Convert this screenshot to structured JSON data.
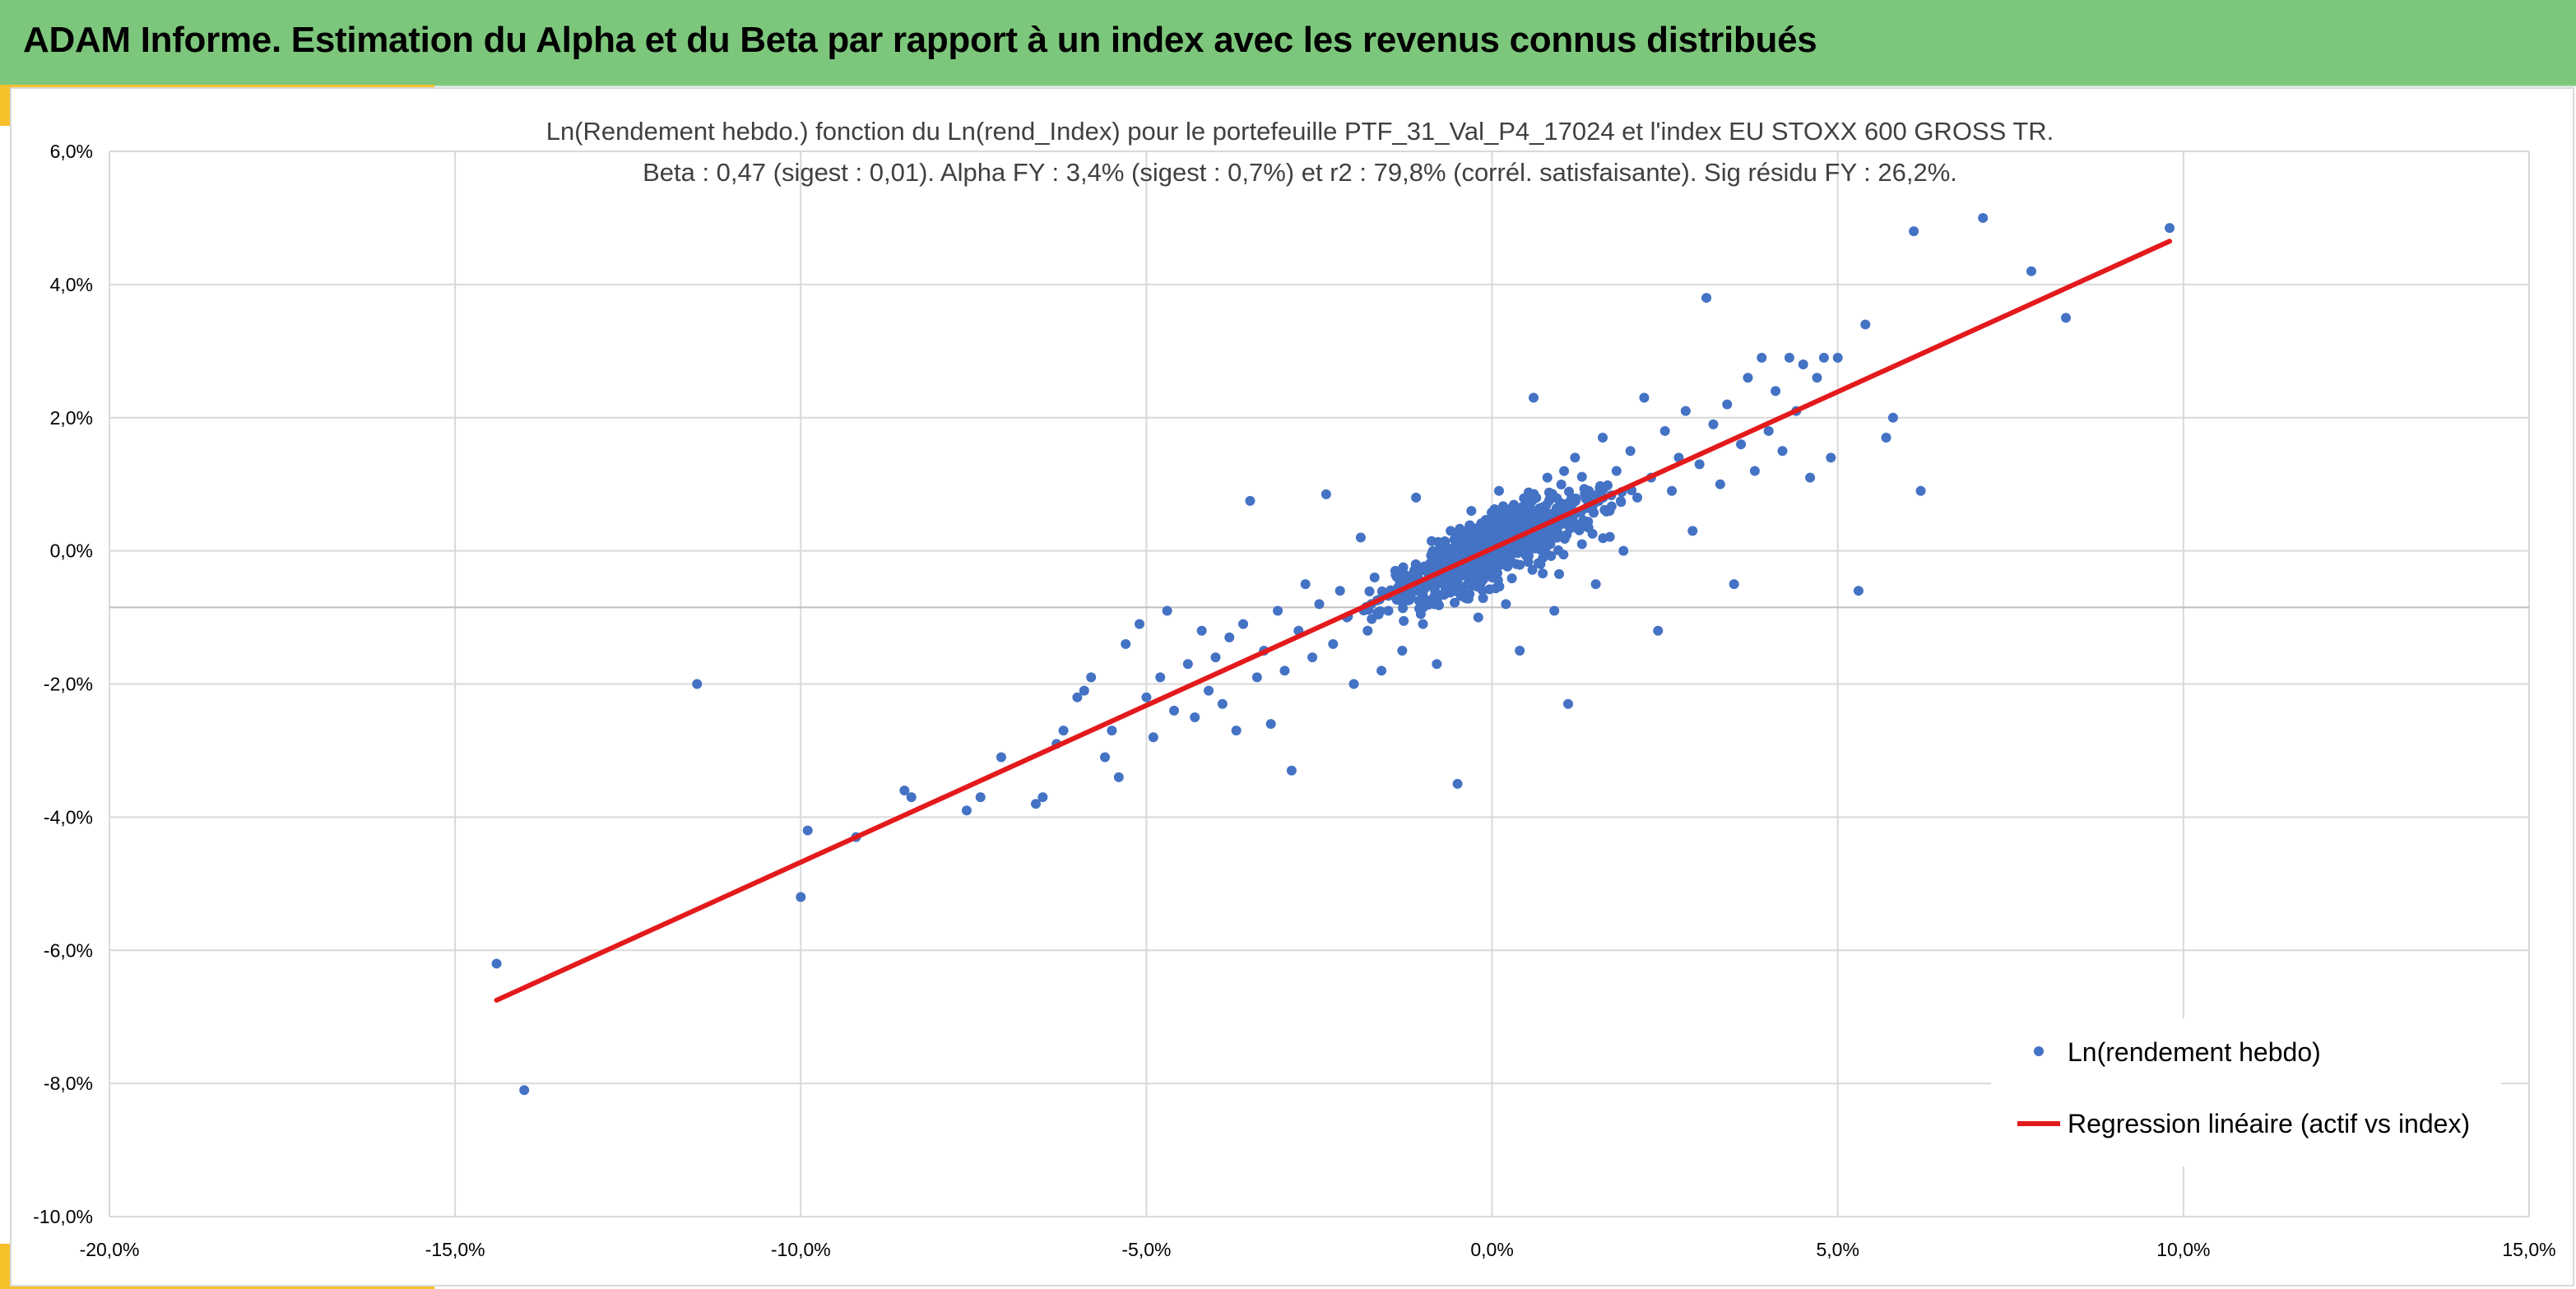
{
  "header": {
    "title": "ADAM Informe. Estimation du Alpha et du Beta par rapport à un index avec les revenus connus distribués"
  },
  "colors": {
    "header_bg": "#7dc77c",
    "accent": "#f6c02b",
    "points": "#4472c4",
    "regression": "#e31a1c",
    "grid": "#d9d9d9"
  },
  "chart_data": {
    "type": "scatter",
    "title_line1": "Ln(Rendement hebdo.) fonction du Ln(rend_Index) pour le portefeuille PTF_31_Val_P4_17024 et l'index EU STOXX 600 GROSS TR.",
    "title_line2": "Beta : 0,47 (sigest : 0,01). Alpha FY : 3,4% (sigest : 0,7%) et r2 : 79,8% (corrél. satisfaisante). Sig résidu FY : 26,2%.",
    "xlim": [
      -20,
      15
    ],
    "ylim": [
      -10,
      6
    ],
    "x_ticks": [
      -20,
      -15,
      -10,
      -5,
      0,
      5,
      10,
      15
    ],
    "y_ticks": [
      -10,
      -8,
      -6,
      -4,
      -2,
      0,
      2,
      4,
      6
    ],
    "x_tick_labels": [
      "-20,0%",
      "-15,0%",
      "-10,0%",
      "-5,0%",
      "0,0%",
      "5,0%",
      "10,0%",
      "15,0%"
    ],
    "y_tick_labels": [
      "-10,0%",
      "-8,0%",
      "-6,0%",
      "-4,0%",
      "-2,0%",
      "0,0%",
      "2,0%",
      "4,0%",
      "6,0%"
    ],
    "horizontal_axis_y": -0.85,
    "grid": true,
    "legend_position": "bottom-right",
    "series": [
      {
        "name": "Ln(rendement hebdo)",
        "kind": "scatter",
        "color": "#4472c4",
        "points": [
          [
            -14.4,
            -6.2
          ],
          [
            -14.0,
            -8.1
          ],
          [
            -11.5,
            -2.0
          ],
          [
            -10.0,
            -5.2
          ],
          [
            -9.9,
            -4.2
          ],
          [
            -9.2,
            -4.3
          ],
          [
            -8.5,
            -3.6
          ],
          [
            -8.4,
            -3.7
          ],
          [
            -7.6,
            -3.9
          ],
          [
            -7.4,
            -3.7
          ],
          [
            -7.1,
            -3.1
          ],
          [
            -6.6,
            -3.8
          ],
          [
            -6.5,
            -3.7
          ],
          [
            -6.3,
            -2.9
          ],
          [
            -6.2,
            -2.7
          ],
          [
            -6.0,
            -2.2
          ],
          [
            -5.9,
            -2.1
          ],
          [
            -5.8,
            -1.9
          ],
          [
            -5.6,
            -3.1
          ],
          [
            -5.5,
            -2.7
          ],
          [
            -5.4,
            -3.4
          ],
          [
            -5.3,
            -1.4
          ],
          [
            -5.1,
            -1.1
          ],
          [
            -5.0,
            -2.2
          ],
          [
            -4.9,
            -2.8
          ],
          [
            -4.8,
            -1.9
          ],
          [
            -4.7,
            -0.9
          ],
          [
            -4.6,
            -2.4
          ],
          [
            -4.4,
            -1.7
          ],
          [
            -4.3,
            -2.5
          ],
          [
            -4.2,
            -1.2
          ],
          [
            -4.1,
            -2.1
          ],
          [
            -4.0,
            -1.6
          ],
          [
            -3.9,
            -2.3
          ],
          [
            -3.8,
            -1.3
          ],
          [
            -3.7,
            -2.7
          ],
          [
            -3.6,
            -1.1
          ],
          [
            -3.5,
            0.75
          ],
          [
            -3.4,
            -1.9
          ],
          [
            -3.3,
            -1.5
          ],
          [
            -3.2,
            -2.6
          ],
          [
            -3.1,
            -0.9
          ],
          [
            -3.0,
            -1.8
          ],
          [
            -2.9,
            -3.3
          ],
          [
            -2.8,
            -1.2
          ],
          [
            -2.7,
            -0.5
          ],
          [
            -2.6,
            -1.6
          ],
          [
            -2.5,
            -0.8
          ],
          [
            -2.4,
            0.85
          ],
          [
            -2.3,
            -1.4
          ],
          [
            -2.2,
            -0.6
          ],
          [
            -2.1,
            -1.0
          ],
          [
            -2.0,
            -2.0
          ],
          [
            -1.9,
            0.2
          ],
          [
            -1.8,
            -1.2
          ],
          [
            -1.7,
            -0.4
          ],
          [
            -1.6,
            -1.8
          ],
          [
            -1.5,
            -0.9
          ],
          [
            -1.4,
            -0.3
          ],
          [
            -1.3,
            -1.5
          ],
          [
            -1.2,
            -0.6
          ],
          [
            -1.1,
            0.8
          ],
          [
            -1.0,
            -1.1
          ],
          [
            -0.9,
            -0.2
          ],
          [
            -0.8,
            -1.7
          ],
          [
            -0.7,
            -0.5
          ],
          [
            -0.6,
            0.3
          ],
          [
            -0.5,
            -3.5
          ],
          [
            -0.4,
            -0.7
          ],
          [
            -0.3,
            0.6
          ],
          [
            -0.2,
            -1.0
          ],
          [
            -0.1,
            -0.1
          ],
          [
            0.0,
            -0.4
          ],
          [
            0.1,
            0.9
          ],
          [
            0.2,
            -0.8
          ],
          [
            0.3,
            0.2
          ],
          [
            0.4,
            -1.5
          ],
          [
            0.5,
            0.5
          ],
          [
            0.6,
            2.3
          ],
          [
            0.7,
            -0.2
          ],
          [
            0.8,
            1.1
          ],
          [
            0.9,
            -0.9
          ],
          [
            1.0,
            0.4
          ],
          [
            1.1,
            -2.3
          ],
          [
            1.2,
            1.4
          ],
          [
            1.3,
            0.1
          ],
          [
            1.4,
            0.9
          ],
          [
            1.5,
            -0.5
          ],
          [
            1.6,
            1.7
          ],
          [
            1.7,
            0.6
          ],
          [
            1.8,
            1.2
          ],
          [
            1.9,
            0.0
          ],
          [
            2.0,
            1.5
          ],
          [
            2.1,
            0.8
          ],
          [
            2.2,
            2.3
          ],
          [
            2.3,
            1.1
          ],
          [
            2.4,
            -1.2
          ],
          [
            2.5,
            1.8
          ],
          [
            2.6,
            0.9
          ],
          [
            2.7,
            1.4
          ],
          [
            2.8,
            2.1
          ],
          [
            2.9,
            0.3
          ],
          [
            3.0,
            1.3
          ],
          [
            3.1,
            3.8
          ],
          [
            3.2,
            1.9
          ],
          [
            3.3,
            1.0
          ],
          [
            3.4,
            2.2
          ],
          [
            3.5,
            -0.5
          ],
          [
            3.6,
            1.6
          ],
          [
            3.7,
            2.6
          ],
          [
            3.8,
            1.2
          ],
          [
            3.9,
            2.9
          ],
          [
            4.0,
            1.8
          ],
          [
            4.1,
            2.4
          ],
          [
            4.2,
            1.5
          ],
          [
            4.3,
            2.9
          ],
          [
            4.4,
            2.1
          ],
          [
            4.5,
            2.8
          ],
          [
            4.6,
            1.1
          ],
          [
            4.7,
            2.6
          ],
          [
            4.8,
            2.9
          ],
          [
            4.9,
            1.4
          ],
          [
            5.0,
            2.9
          ],
          [
            5.3,
            -0.6
          ],
          [
            5.4,
            3.4
          ],
          [
            5.7,
            1.7
          ],
          [
            5.8,
            2.0
          ],
          [
            6.1,
            4.8
          ],
          [
            6.2,
            0.9
          ],
          [
            7.1,
            5.0
          ],
          [
            7.8,
            4.2
          ],
          [
            8.3,
            3.5
          ],
          [
            9.8,
            4.85
          ]
        ]
      },
      {
        "name": "Regression linéaire (actif vs index)",
        "kind": "line",
        "color": "#e31a1c",
        "points": [
          [
            -14.4,
            -6.75
          ],
          [
            9.8,
            4.65
          ]
        ]
      }
    ]
  }
}
